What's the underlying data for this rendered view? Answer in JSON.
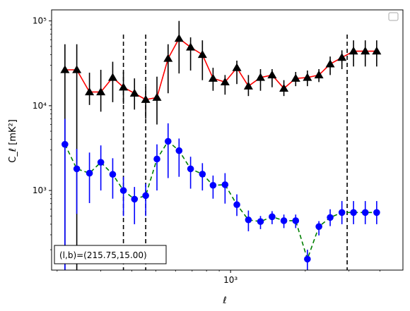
{
  "chart_data": {
    "type": "line",
    "xlabel": "ℓ",
    "ylabel": "C_ℓ  [mK²]",
    "xscale": "log",
    "yscale": "log",
    "xlim": [
      190,
      4950
    ],
    "ylim": [
      115,
      135000
    ],
    "grid": false,
    "legend": "top-right",
    "annotation": "(l,b)=(215.75,15.00)",
    "x_tick_labels": [
      "10³"
    ],
    "y_tick_labels": [
      "10³",
      "10⁴",
      "10⁵"
    ],
    "vlines": [
      370,
      455,
      2950
    ],
    "series": [
      {
        "color": "#ff0000",
        "marker": "triangle",
        "marker_color": "#000000",
        "errorbar_color": "#000000",
        "linestyle": "solid",
        "x": [
          215,
          240,
          270,
          300,
          335,
          370,
          410,
          455,
          505,
          560,
          620,
          690,
          770,
          850,
          950,
          1060,
          1180,
          1320,
          1470,
          1640,
          1830,
          2040,
          2270,
          2520,
          2810,
          3130,
          3490,
          3880
        ],
        "y": [
          26500,
          26500,
          14500,
          14500,
          21500,
          16500,
          14000,
          11800,
          12500,
          36000,
          62000,
          49000,
          40000,
          21000,
          19000,
          28000,
          17000,
          21500,
          23000,
          16000,
          21000,
          21500,
          23000,
          31000,
          37000,
          44000,
          44000,
          44000
        ],
        "yerr_low": [
          26500,
          26500,
          4300,
          6000,
          10500,
          6000,
          5000,
          4800,
          6500,
          22000,
          38000,
          23000,
          20000,
          6000,
          5500,
          10000,
          4000,
          6500,
          6500,
          3000,
          4000,
          4500,
          4000,
          8000,
          10000,
          15000,
          15000,
          15000
        ],
        "yerr_high": [
          26500,
          26500,
          10000,
          12000,
          11500,
          8500,
          7000,
          4800,
          9500,
          17000,
          38000,
          15000,
          19000,
          7000,
          4000,
          6000,
          6000,
          5500,
          4000,
          4000,
          4000,
          4500,
          4000,
          7000,
          8000,
          15000,
          15000,
          15000
        ]
      },
      {
        "color": "#008000",
        "marker": "circle",
        "marker_color": "#0000ff",
        "errorbar_color": "#0000ff",
        "linestyle": "dashed",
        "x": [
          215,
          240,
          270,
          300,
          335,
          370,
          410,
          455,
          505,
          560,
          620,
          690,
          770,
          850,
          950,
          1060,
          1180,
          1320,
          1470,
          1640,
          1830,
          2040,
          2270,
          2520,
          2810,
          3130,
          3490,
          3880
        ],
        "y": [
          3500,
          1800,
          1600,
          2150,
          1550,
          1000,
          790,
          870,
          2350,
          3800,
          2950,
          1800,
          1560,
          1150,
          1170,
          680,
          450,
          430,
          490,
          440,
          440,
          155,
          375,
          480,
          550,
          550,
          550,
          550
        ],
        "yerr_low": [
          3400,
          1270,
          890,
          1150,
          750,
          500,
          390,
          370,
          1350,
          2400,
          1500,
          750,
          560,
          350,
          470,
          180,
          120,
          80,
          90,
          80,
          80,
          45,
          80,
          100,
          150,
          150,
          150,
          150
        ],
        "yerr_high": [
          3500,
          1300,
          1200,
          1250,
          850,
          450,
          310,
          330,
          1150,
          2400,
          1150,
          700,
          540,
          350,
          430,
          220,
          130,
          70,
          80,
          80,
          80,
          45,
          60,
          120,
          200,
          200,
          200,
          200
        ]
      }
    ]
  }
}
